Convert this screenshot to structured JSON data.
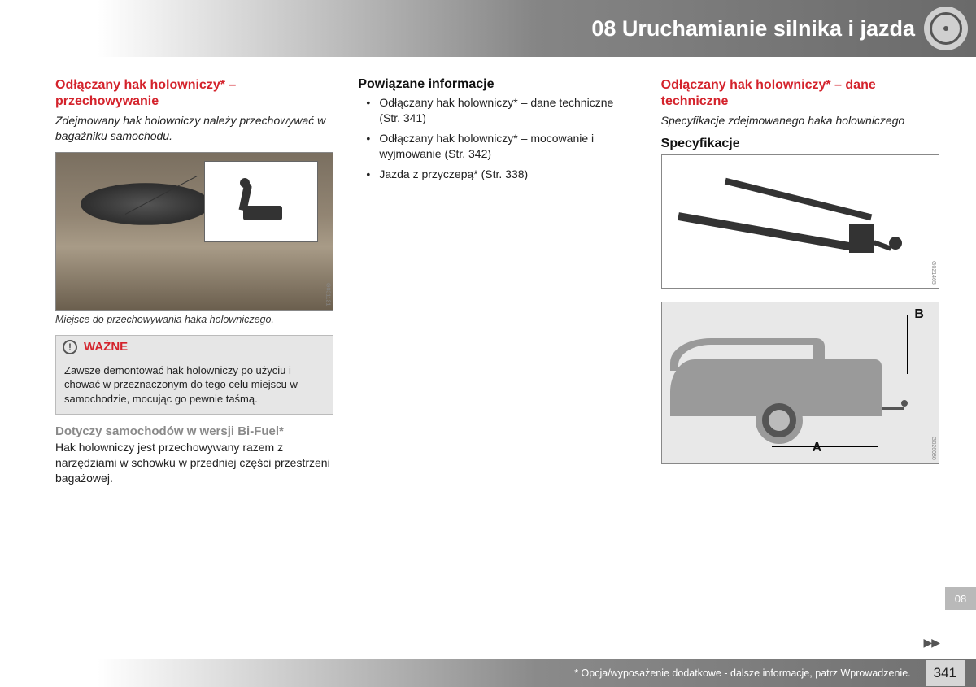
{
  "header": {
    "chapter_title": "08 Uruchamianie silnika i jazda",
    "side_tab": "08"
  },
  "col1": {
    "title": "Odłączany hak holowniczy* – przechowywanie",
    "intro": "Zdejmowany hak holowniczy należy przechowywać w bagażniku samochodu.",
    "fig1_code": "G031121",
    "fig1_caption": "Miejsce do przechowywania haka holowniczego.",
    "note": {
      "title": "WAŻNE",
      "body": "Zawsze demontować hak holowniczy po użyciu i chować w przeznaczonym do tego celu miejscu w samochodzie, mocując go pewnie taśmą."
    },
    "sub_title": "Dotyczy samochodów w wersji Bi-Fuel*",
    "sub_body": "Hak holowniczy jest przechowywany razem z narzędziami w schowku w przedniej części przestrzeni bagażowej."
  },
  "col2": {
    "title": "Powiązane informacje",
    "items": [
      "Odłączany hak holowniczy* – dane techniczne (Str. 341)",
      "Odłączany hak holowniczy* – mocowanie i wyjmowanie (Str. 342)",
      "Jazda z przyczepą* (Str. 338)"
    ]
  },
  "col3": {
    "title": "Odłączany hak holowniczy* – dane techniczne",
    "intro": "Specyfikacje zdejmowanego haka holowniczego",
    "spec_heading": "Specyfikacje",
    "fig2_code": "G021465",
    "fig3_code": "G026080",
    "labelA": "A",
    "labelB": "B"
  },
  "footer": {
    "note": "* Opcja/wyposażenie dodatkowe - dalsze informacje, patrz Wprowadzenie.",
    "page": "341",
    "more": "▶▶"
  },
  "colors": {
    "accent_red": "#d4232c",
    "gray_text": "#8a8a8a",
    "band_dark": "#6a6a6a"
  }
}
